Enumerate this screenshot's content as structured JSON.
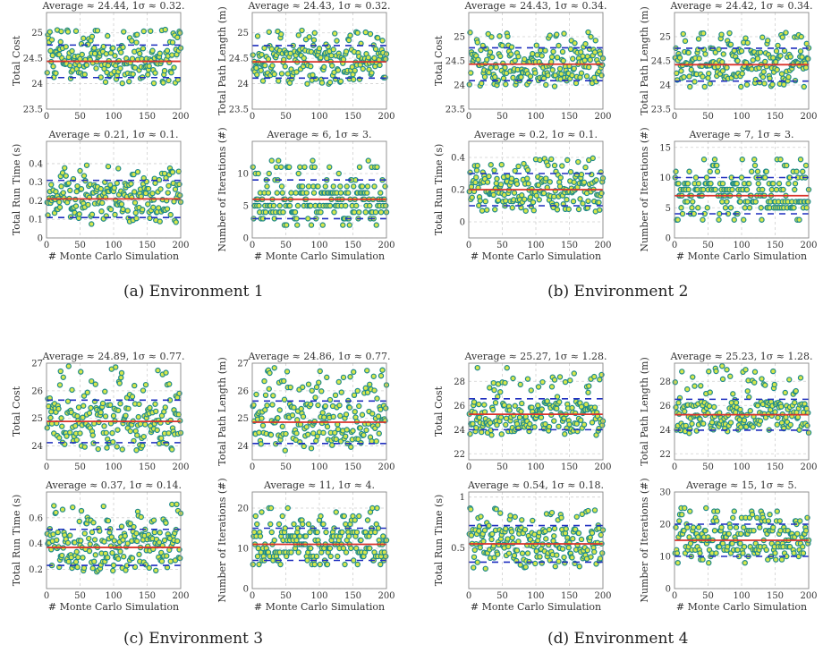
{
  "figure": {
    "captions": [
      "(a) Environment 1",
      "(b) Environment 2",
      "(c) Environment 3",
      "(d) Environment 4"
    ],
    "xlabel": "# Monte Carlo Simulation"
  },
  "colors": {
    "marker_fill": "#d8e84a",
    "marker_edge": "#1f8a8a",
    "mean_line": "#d9332b",
    "sigma_line": "#1f2fbf",
    "grid": "#d0d0d0",
    "axis": "#888888"
  },
  "chart_data": [
    {
      "type": "scatter",
      "panel": "a",
      "title": "Average ≈ 24.44, 1σ ≈ 0.32.",
      "ylabel": "Total Cost",
      "xlim": [
        0,
        200
      ],
      "ylim": [
        23.5,
        25.4
      ],
      "yticks": [
        23.5,
        24,
        24.5,
        25
      ],
      "xticks": [
        0,
        50,
        100,
        150,
        200
      ],
      "mean": 24.44,
      "sigma": 0.32,
      "n": 200,
      "seed": 11,
      "skew": 1.0,
      "discrete": false,
      "grid": true,
      "legend": "none"
    },
    {
      "type": "scatter",
      "panel": "a",
      "title": "Average ≈ 24.43, 1σ ≈ 0.32.",
      "ylabel": "Total Path Length (m)",
      "xlim": [
        0,
        200
      ],
      "ylim": [
        23.5,
        25.4
      ],
      "yticks": [
        23.5,
        24,
        24.5,
        25
      ],
      "xticks": [
        0,
        50,
        100,
        150,
        200
      ],
      "mean": 24.43,
      "sigma": 0.32,
      "n": 200,
      "seed": 12,
      "skew": 1.0,
      "discrete": false,
      "grid": true,
      "legend": "none"
    },
    {
      "type": "scatter",
      "panel": "a",
      "title": "Average ≈ 0.21, 1σ ≈ 0.1.",
      "ylabel": "Total Run Time (s)",
      "xlim": [
        0,
        200
      ],
      "ylim": [
        0,
        0.52
      ],
      "yticks": [
        0,
        0.1,
        0.2,
        0.3,
        0.4
      ],
      "xticks": [
        0,
        50,
        100,
        150,
        200
      ],
      "mean": 0.21,
      "sigma": 0.1,
      "n": 200,
      "seed": 13,
      "skew": 1.0,
      "discrete": false,
      "grid": true,
      "legend": "none"
    },
    {
      "type": "scatter",
      "panel": "a",
      "title": "Average ≈ 6, 1σ ≈ 3.",
      "ylabel": "Number of Iterations (#)",
      "xlim": [
        0,
        200
      ],
      "ylim": [
        0,
        15
      ],
      "yticks": [
        0,
        5,
        10
      ],
      "xticks": [
        0,
        50,
        100,
        150,
        200
      ],
      "mean": 6,
      "sigma": 3,
      "n": 200,
      "seed": 14,
      "skew": 1.0,
      "discrete": true,
      "grid": true,
      "legend": "none"
    },
    {
      "type": "scatter",
      "panel": "b",
      "title": "Average ≈ 24.43, 1σ ≈ 0.34.",
      "ylabel": "Total Cost",
      "xlim": [
        0,
        200
      ],
      "ylim": [
        23.5,
        25.5
      ],
      "yticks": [
        23.5,
        24,
        24.5,
        25
      ],
      "xticks": [
        0,
        50,
        100,
        150,
        200
      ],
      "mean": 24.43,
      "sigma": 0.34,
      "n": 200,
      "seed": 21,
      "skew": 1.0,
      "discrete": false,
      "grid": true,
      "legend": "none"
    },
    {
      "type": "scatter",
      "panel": "b",
      "title": "Average ≈ 24.42, 1σ ≈ 0.34.",
      "ylabel": "Total Path Length (m)",
      "xlim": [
        0,
        200
      ],
      "ylim": [
        23.5,
        25.5
      ],
      "yticks": [
        23.5,
        24,
        24.5,
        25
      ],
      "xticks": [
        0,
        50,
        100,
        150,
        200
      ],
      "mean": 24.42,
      "sigma": 0.34,
      "n": 200,
      "seed": 22,
      "skew": 1.0,
      "discrete": false,
      "grid": true,
      "legend": "none"
    },
    {
      "type": "scatter",
      "panel": "b",
      "title": "Average ≈ 0.2, 1σ ≈ 0.1.",
      "ylabel": "Total Run Time (s)",
      "xlim": [
        0,
        200
      ],
      "ylim": [
        -0.1,
        0.5
      ],
      "yticks": [
        0,
        0.2,
        0.4
      ],
      "xticks": [
        0,
        50,
        100,
        150,
        200
      ],
      "mean": 0.2,
      "sigma": 0.1,
      "n": 200,
      "seed": 23,
      "skew": 1.0,
      "discrete": false,
      "grid": true,
      "legend": "none"
    },
    {
      "type": "scatter",
      "panel": "b",
      "title": "Average ≈ 7, 1σ ≈ 3.",
      "ylabel": "Number of Iterations (#)",
      "xlim": [
        0,
        200
      ],
      "ylim": [
        0,
        16
      ],
      "yticks": [
        0,
        5,
        10,
        15
      ],
      "xticks": [
        0,
        50,
        100,
        150,
        200
      ],
      "mean": 7,
      "sigma": 3,
      "n": 200,
      "seed": 24,
      "skew": 1.0,
      "discrete": true,
      "grid": true,
      "legend": "none"
    },
    {
      "type": "scatter",
      "panel": "c",
      "title": "Average ≈ 24.89, 1σ ≈ 0.77.",
      "ylabel": "Total Cost",
      "xlim": [
        0,
        200
      ],
      "ylim": [
        23.5,
        27
      ],
      "yticks": [
        24,
        25,
        26,
        27
      ],
      "xticks": [
        0,
        50,
        100,
        150,
        200
      ],
      "mean": 24.89,
      "sigma": 0.77,
      "n": 200,
      "seed": 31,
      "skew": 1.6,
      "discrete": false,
      "grid": true,
      "legend": "none"
    },
    {
      "type": "scatter",
      "panel": "c",
      "title": "Average ≈ 24.86, 1σ ≈ 0.77.",
      "ylabel": "Total Path Length (m)",
      "xlim": [
        0,
        200
      ],
      "ylim": [
        23.5,
        27
      ],
      "yticks": [
        24,
        25,
        26,
        27
      ],
      "xticks": [
        0,
        50,
        100,
        150,
        200
      ],
      "mean": 24.86,
      "sigma": 0.77,
      "n": 200,
      "seed": 32,
      "skew": 1.6,
      "discrete": false,
      "grid": true,
      "legend": "none"
    },
    {
      "type": "scatter",
      "panel": "c",
      "title": "Average ≈ 0.37, 1σ ≈ 0.14.",
      "ylabel": "Total Run Time (s)",
      "xlim": [
        0,
        200
      ],
      "ylim": [
        0.05,
        0.8
      ],
      "yticks": [
        0.2,
        0.4,
        0.6
      ],
      "xticks": [
        0,
        50,
        100,
        150,
        200
      ],
      "mean": 0.37,
      "sigma": 0.14,
      "n": 200,
      "seed": 33,
      "skew": 1.4,
      "discrete": false,
      "grid": true,
      "legend": "none"
    },
    {
      "type": "scatter",
      "panel": "c",
      "title": "Average ≈ 11, 1σ ≈ 4.",
      "ylabel": "Number of Iterations (#)",
      "xlim": [
        0,
        200
      ],
      "ylim": [
        0,
        24
      ],
      "yticks": [
        0,
        10,
        20
      ],
      "xticks": [
        0,
        50,
        100,
        150,
        200
      ],
      "mean": 11,
      "sigma": 4,
      "n": 200,
      "seed": 34,
      "skew": 1.4,
      "discrete": true,
      "grid": true,
      "legend": "none"
    },
    {
      "type": "scatter",
      "panel": "d",
      "title": "Average ≈ 25.27, 1σ ≈ 1.28.",
      "ylabel": "Total Cost",
      "xlim": [
        0,
        200
      ],
      "ylim": [
        21.5,
        29.5
      ],
      "yticks": [
        22,
        24,
        26,
        28
      ],
      "xticks": [
        0,
        50,
        100,
        150,
        200
      ],
      "mean": 25.27,
      "sigma": 1.28,
      "n": 200,
      "seed": 41,
      "skew": 2.2,
      "discrete": false,
      "grid": true,
      "legend": "none"
    },
    {
      "type": "scatter",
      "panel": "d",
      "title": "Average ≈ 25.23, 1σ ≈ 1.28.",
      "ylabel": "Total Path Length (m)",
      "xlim": [
        0,
        200
      ],
      "ylim": [
        21.5,
        29.5
      ],
      "yticks": [
        22,
        24,
        26,
        28
      ],
      "xticks": [
        0,
        50,
        100,
        150,
        200
      ],
      "mean": 25.23,
      "sigma": 1.28,
      "n": 200,
      "seed": 42,
      "skew": 2.2,
      "discrete": false,
      "grid": true,
      "legend": "none"
    },
    {
      "type": "scatter",
      "panel": "d",
      "title": "Average ≈ 0.54, 1σ ≈ 0.18.",
      "ylabel": "Total Run Time (s)",
      "xlim": [
        0,
        200
      ],
      "ylim": [
        0.1,
        1.05
      ],
      "yticks": [
        0.5,
        1
      ],
      "xticks": [
        0,
        50,
        100,
        150,
        200
      ],
      "mean": 0.54,
      "sigma": 0.18,
      "n": 200,
      "seed": 43,
      "skew": 1.0,
      "discrete": false,
      "grid": true,
      "legend": "none"
    },
    {
      "type": "scatter",
      "panel": "d",
      "title": "Average ≈ 15, 1σ ≈ 5.",
      "ylabel": "Number of Iterations (#)",
      "xlim": [
        0,
        200
      ],
      "ylim": [
        0,
        30
      ],
      "yticks": [
        0,
        10,
        20,
        30
      ],
      "xticks": [
        0,
        50,
        100,
        150,
        200
      ],
      "mean": 15,
      "sigma": 5,
      "n": 200,
      "seed": 44,
      "skew": 1.0,
      "discrete": true,
      "grid": true,
      "legend": "none"
    }
  ]
}
